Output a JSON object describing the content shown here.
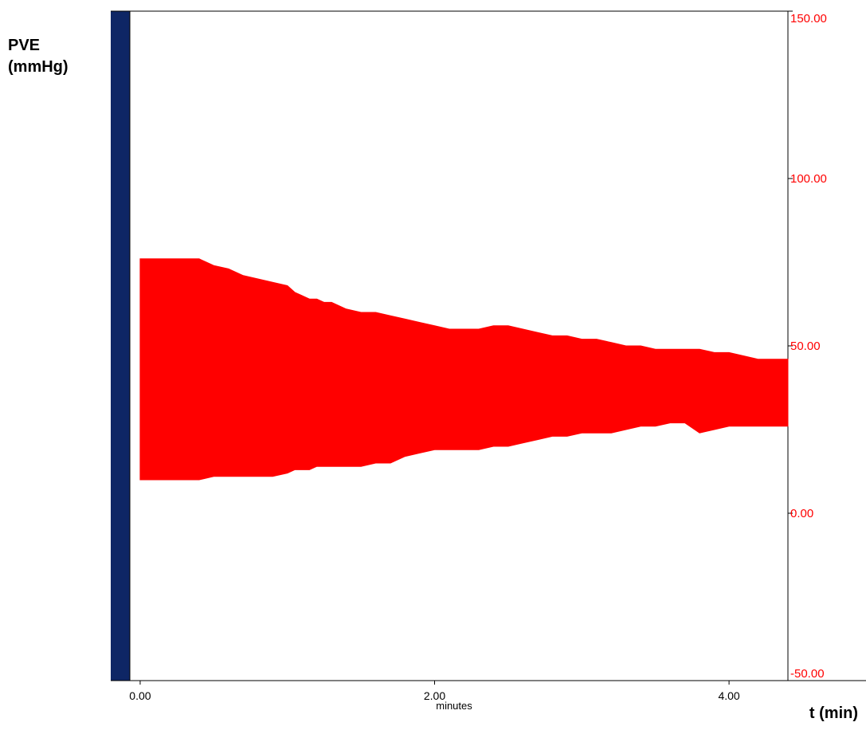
{
  "chart_data": {
    "type": "area",
    "ylabel": "PVE\n(mmHg)",
    "xlabel": "t (min)",
    "x_unit_label": "minutes",
    "xlim": [
      -0.07,
      4.4
    ],
    "ylim": [
      -50,
      150
    ],
    "x_ticks": [
      0,
      2,
      4
    ],
    "x_tick_labels": [
      "0.00",
      "2.00",
      "4.00"
    ],
    "y_ticks": [
      150,
      100,
      50,
      0,
      -50
    ],
    "y_tick_labels": [
      "150.00",
      "100.00",
      "50.00",
      "0.00",
      "-50.00"
    ],
    "grid": false,
    "colors": {
      "series": "#ff0000",
      "recording_bar": "#0e2665",
      "axis_labels": "#ff0000"
    },
    "series": [
      {
        "x": [
          0.0,
          0.2,
          0.4,
          0.5,
          0.6,
          0.7,
          0.8,
          0.9,
          1.0,
          1.05,
          1.1,
          1.15,
          1.2,
          1.25,
          1.3,
          1.4,
          1.5,
          1.6,
          1.7,
          1.8,
          1.9,
          2.0,
          2.1,
          2.2,
          2.3,
          2.4,
          2.5,
          2.6,
          2.7,
          2.8,
          2.9,
          3.0,
          3.1,
          3.2,
          3.3,
          3.4,
          3.5,
          3.6,
          3.7,
          3.8,
          3.9,
          4.0,
          4.1,
          4.2,
          4.3,
          4.4
        ],
        "upper": [
          76,
          76,
          76,
          74,
          73,
          71,
          70,
          69,
          68,
          66,
          65,
          64,
          64,
          63,
          63,
          61,
          60,
          60,
          59,
          58,
          57,
          56,
          55,
          55,
          55,
          56,
          56,
          55,
          54,
          53,
          53,
          52,
          52,
          51,
          50,
          50,
          49,
          49,
          49,
          49,
          48,
          48,
          47,
          46,
          46,
          46
        ],
        "lower": [
          10,
          10,
          10,
          11,
          11,
          11,
          11,
          11,
          12,
          13,
          13,
          13,
          14,
          14,
          14,
          14,
          14,
          15,
          15,
          17,
          18,
          19,
          19,
          19,
          19,
          20,
          20,
          21,
          22,
          23,
          23,
          24,
          24,
          24,
          25,
          26,
          26,
          27,
          27,
          24,
          25,
          26,
          26,
          26,
          26,
          26
        ]
      }
    ]
  }
}
